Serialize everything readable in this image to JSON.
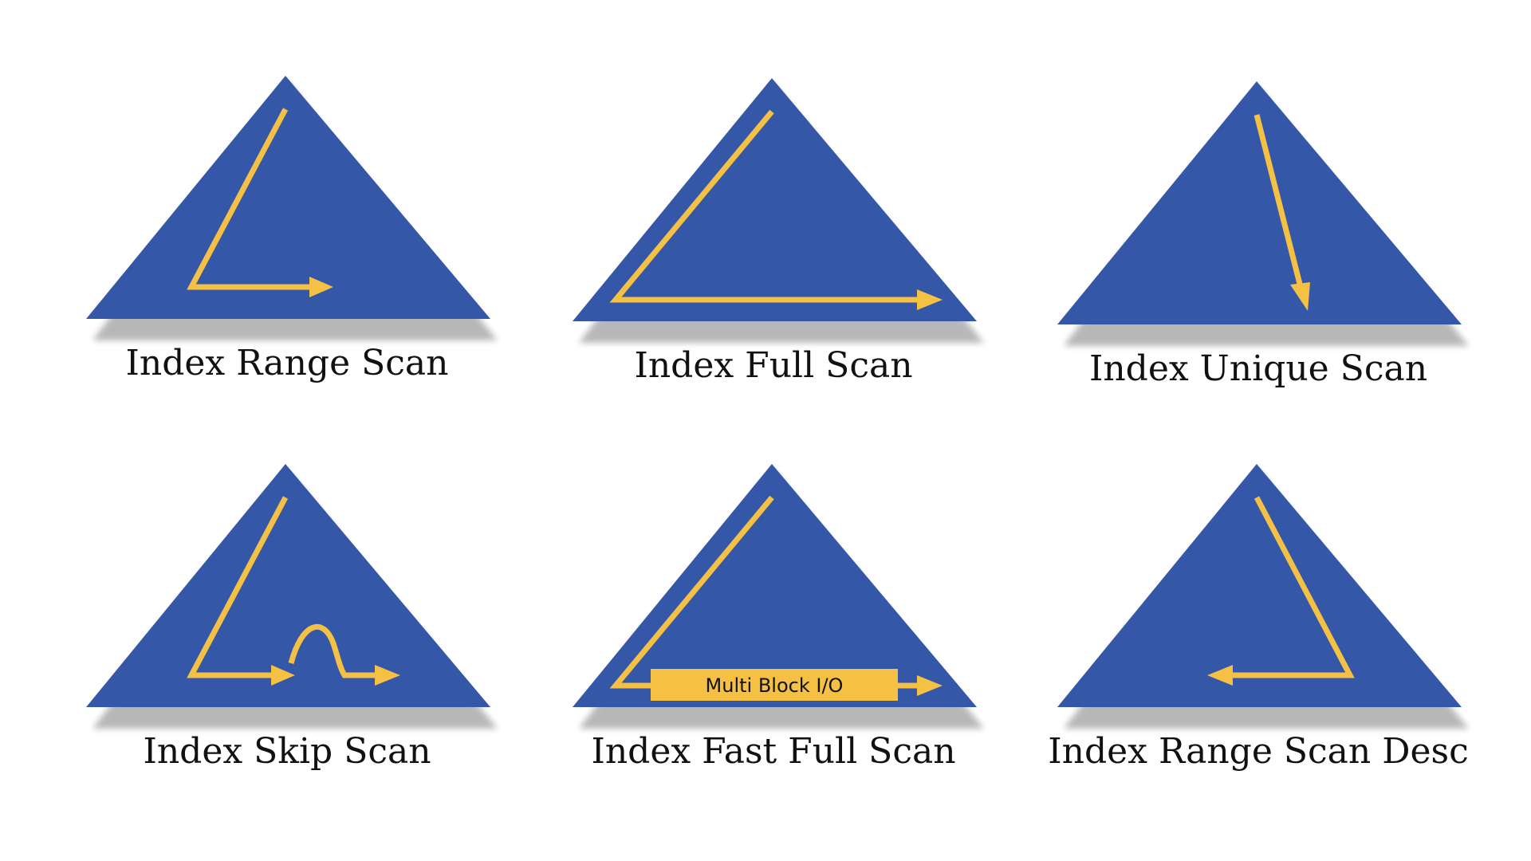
{
  "colors": {
    "triangle": "#3457a8",
    "accent": "#f4c145",
    "text": "#111111",
    "background": "#ffffff"
  },
  "panels": [
    {
      "name": "index-range-scan",
      "title": "Index Range Scan"
    },
    {
      "name": "index-full-scan",
      "title": "Index Full Scan"
    },
    {
      "name": "index-unique-scan",
      "title": "Index Unique Scan"
    },
    {
      "name": "index-skip-scan",
      "title": "Index Skip Scan"
    },
    {
      "name": "index-fast-full-scan",
      "title": "Index Fast Full Scan",
      "label": "Multi Block I/O"
    },
    {
      "name": "index-range-scan-desc",
      "title": "Index Range Scan Desc"
    }
  ]
}
